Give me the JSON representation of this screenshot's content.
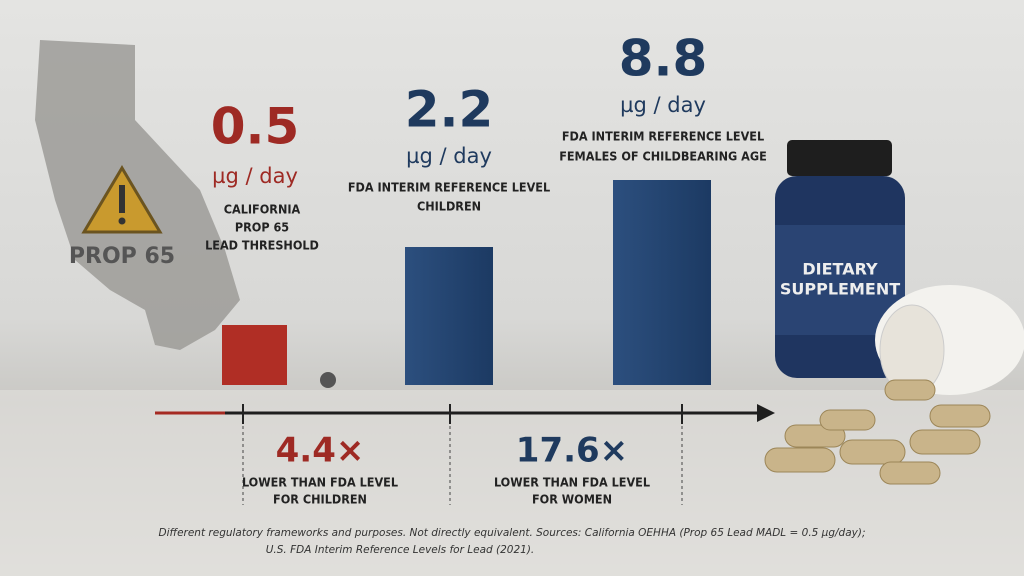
{
  "header": {
    "prop65_badge": "PROP 65"
  },
  "levels": [
    {
      "value": "0.5",
      "unit": "µg / day",
      "label_lines": [
        "CALIFORNIA",
        "PROP 65",
        "LEAD THRESHOLD"
      ]
    },
    {
      "value": "2.2",
      "unit": "µg / day",
      "label_lines": [
        "FDA INTERIM REFERENCE LEVEL",
        "CHILDREN"
      ]
    },
    {
      "value": "8.8",
      "unit": "µg / day",
      "label_lines": [
        "FDA INTERIM REFERENCE LEVEL",
        "FEMALES OF CHILDBEARING AGE"
      ]
    }
  ],
  "bottle_label": [
    "DIETARY",
    "SUPPLEMENT"
  ],
  "comparisons": [
    {
      "multiple": "4.4×",
      "label_lines": [
        "LOWER THAN FDA LEVEL",
        "FOR CHILDREN"
      ]
    },
    {
      "multiple": "17.6×",
      "label_lines": [
        "LOWER THAN FDA LEVEL",
        "FOR WOMEN"
      ]
    }
  ],
  "footnote": [
    "Different regulatory frameworks and purposes. Not directly equivalent. Sources: California OEHHA (Prop 65 Lead MADL = 0.5 µg/day);",
    "U.S. FDA Interim Reference Levels for Lead (2021)."
  ]
}
